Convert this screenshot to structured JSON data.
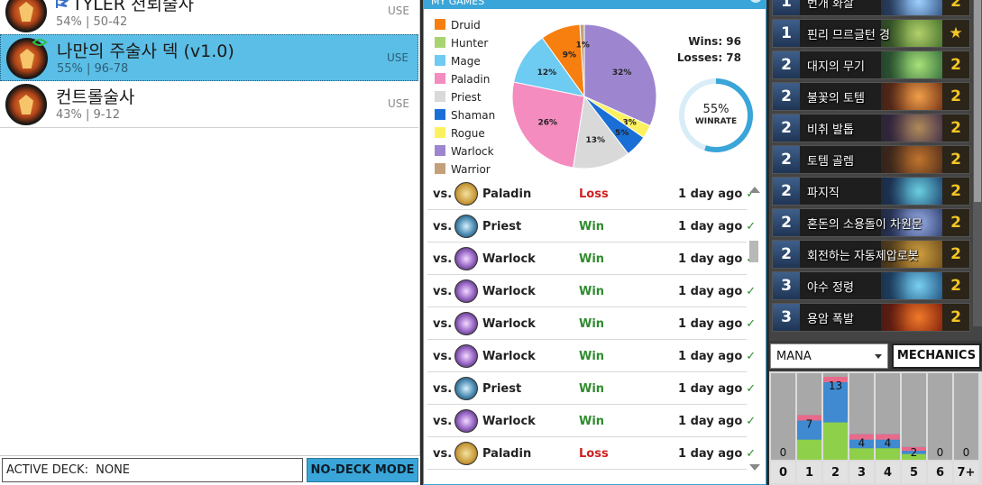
{
  "decks": [
    {
      "name": "TYLER 천뢰술사",
      "stats": "54% | 50-42",
      "use_label": "USE",
      "selected": false,
      "has_tag": true
    },
    {
      "name": "나만의 주술사 덱  (v1.0)",
      "stats": "55% | 96-78",
      "use_label": "USE",
      "selected": true,
      "has_tag": false
    },
    {
      "name": "컨트롤술사",
      "stats": "43% | 9-12",
      "use_label": "USE",
      "selected": false,
      "has_tag": false
    }
  ],
  "bottom_bar": {
    "active_deck_label": "ACTIVE DECK:",
    "active_deck_value": "NONE",
    "no_deck_button": "NO-DECK MODE"
  },
  "my_games": {
    "title": "MY GAMES",
    "legend": [
      {
        "label": "Druid",
        "color": "#f77f0f"
      },
      {
        "label": "Hunter",
        "color": "#a8d46f"
      },
      {
        "label": "Mage",
        "color": "#6ecbf2"
      },
      {
        "label": "Paladin",
        "color": "#f48cbf"
      },
      {
        "label": "Priest",
        "color": "#d9d9d9"
      },
      {
        "label": "Shaman",
        "color": "#1a6fd6"
      },
      {
        "label": "Rogue",
        "color": "#fbf160"
      },
      {
        "label": "Warlock",
        "color": "#9d86cf"
      },
      {
        "label": "Warrior",
        "color": "#c4a07a"
      }
    ],
    "wins_text": "Wins: 96",
    "losses_text": "Losses: 78",
    "winrate_pct": "55%",
    "winrate_value": 55,
    "winrate_label": "WINRATE"
  },
  "chart_data": {
    "type": "pie",
    "slices": [
      {
        "label": "Warlock",
        "value": 32,
        "display": "32%",
        "color": "#9d86cf"
      },
      {
        "label": "Rogue",
        "value": 3,
        "display": "3%",
        "color": "#fbf160"
      },
      {
        "label": "Shaman",
        "value": 5,
        "display": "5%",
        "color": "#1a6fd6"
      },
      {
        "label": "Priest",
        "value": 13,
        "display": "13%",
        "color": "#d9d9d9"
      },
      {
        "label": "Paladin",
        "value": 26,
        "display": "26%",
        "color": "#f48cbf"
      },
      {
        "label": "Mage",
        "value": 12,
        "display": "12%",
        "color": "#6ecbf2"
      },
      {
        "label": "Hunter",
        "value": 0,
        "display": "",
        "color": "#a8d46f"
      },
      {
        "label": "Druid",
        "value": 9,
        "display": "9%",
        "color": "#f77f0f"
      },
      {
        "label": "Warrior",
        "value": 1,
        "display": "1%",
        "color": "#c4a07a"
      }
    ]
  },
  "games": [
    {
      "vs": "vs.",
      "hero": "paladin",
      "class": "Paladin",
      "result": "Loss",
      "time": "1 day ago",
      "check": "✓"
    },
    {
      "vs": "vs.",
      "hero": "priest",
      "class": "Priest",
      "result": "Win",
      "time": "1 day ago",
      "check": "✓"
    },
    {
      "vs": "vs.",
      "hero": "warlock",
      "class": "Warlock",
      "result": "Win",
      "time": "1 day ago",
      "check": "✓"
    },
    {
      "vs": "vs.",
      "hero": "warlock",
      "class": "Warlock",
      "result": "Win",
      "time": "1 day ago",
      "check": "✓"
    },
    {
      "vs": "vs.",
      "hero": "warlock",
      "class": "Warlock",
      "result": "Win",
      "time": "1 day ago",
      "check": "✓"
    },
    {
      "vs": "vs.",
      "hero": "warlock",
      "class": "Warlock",
      "result": "Win",
      "time": "1 day ago",
      "check": "✓"
    },
    {
      "vs": "vs.",
      "hero": "priest",
      "class": "Priest",
      "result": "Win",
      "time": "1 day ago",
      "check": "✓"
    },
    {
      "vs": "vs.",
      "hero": "warlock",
      "class": "Warlock",
      "result": "Win",
      "time": "1 day ago",
      "check": "✓"
    },
    {
      "vs": "vs.",
      "hero": "paladin",
      "class": "Paladin",
      "result": "Loss",
      "time": "1 day ago",
      "check": "✓"
    }
  ],
  "cards": [
    {
      "cost": "1",
      "name": "번개 화살",
      "count": "2",
      "art": [
        "#2a4a7a",
        "#9fd0ff"
      ]
    },
    {
      "cost": "1",
      "name": "핀리 므르글턴 경",
      "count": "★",
      "art": [
        "#3f6b2a",
        "#b3d06a"
      ]
    },
    {
      "cost": "2",
      "name": "대지의 무기",
      "count": "2",
      "art": [
        "#2f6a3a",
        "#a9e07a"
      ]
    },
    {
      "cost": "2",
      "name": "불꽃의 토템",
      "count": "2",
      "art": [
        "#6a2a14",
        "#f0a04a"
      ]
    },
    {
      "cost": "2",
      "name": "비취 발톱",
      "count": "2",
      "art": [
        "#3a2a4a",
        "#b08a5a"
      ]
    },
    {
      "cost": "2",
      "name": "토템 골렘",
      "count": "2",
      "art": [
        "#4a2a1a",
        "#c0742e"
      ]
    },
    {
      "cost": "2",
      "name": "파지직",
      "count": "2",
      "art": [
        "#1a3a6a",
        "#6ad0e0"
      ]
    },
    {
      "cost": "2",
      "name": "혼돈의 소용돌이 차원문",
      "count": "2",
      "art": [
        "#2a3a6a",
        "#9ab0e8"
      ]
    },
    {
      "cost": "2",
      "name": "회전하는 자동제압로봇",
      "count": "2",
      "art": [
        "#6a4a1a",
        "#d0a040"
      ]
    },
    {
      "cost": "3",
      "name": "야수 정령",
      "count": "2",
      "art": [
        "#1a4a7a",
        "#7ad0f0"
      ]
    },
    {
      "cost": "3",
      "name": "용암 폭발",
      "count": "2",
      "art": [
        "#7a1a0a",
        "#f07a2a"
      ]
    }
  ],
  "filters": {
    "mana_label": "MANA",
    "mechanics_label": "MECHANICS"
  },
  "mana_curve": {
    "type": "bar",
    "categories": [
      "0",
      "1",
      "2",
      "3",
      "4",
      "5",
      "6",
      "7+"
    ],
    "values": [
      0,
      7,
      13,
      4,
      4,
      2,
      0,
      0
    ],
    "ylim": [
      0,
      13
    ]
  }
}
